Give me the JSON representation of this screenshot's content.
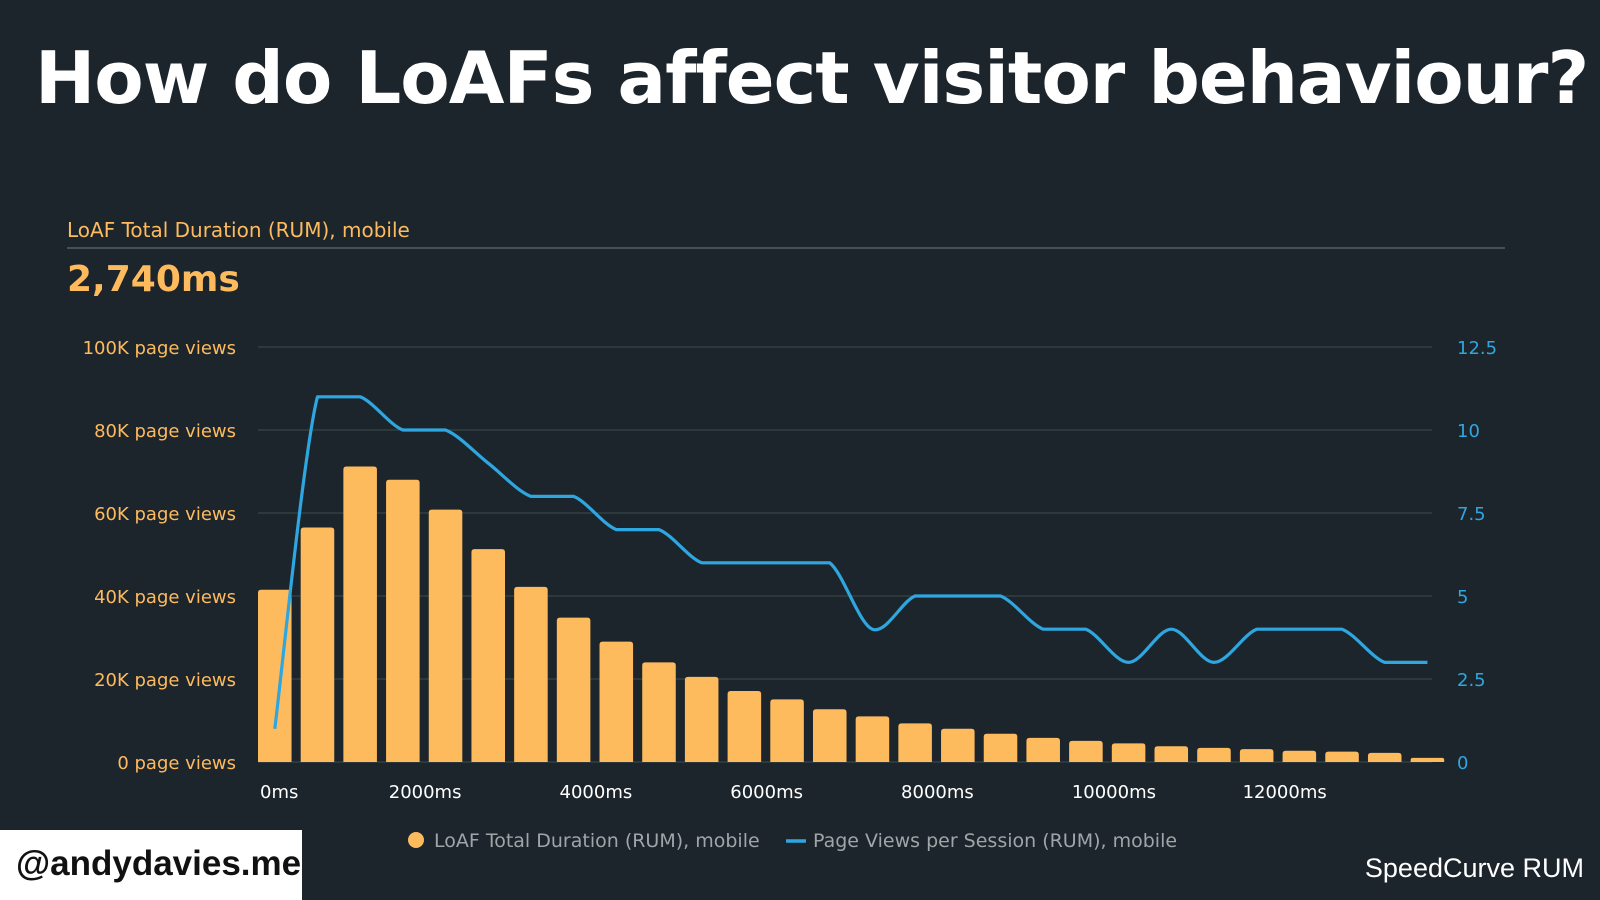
{
  "slide": {
    "title": "How do LoAFs affect visitor behaviour?",
    "handle": "@andydavies.me",
    "source": "SpeedCurve RUM"
  },
  "colors": {
    "background": "#1d252c",
    "bars": "#fdbb5e",
    "line": "#2ea6df",
    "gridline": "#3a4a47",
    "title_text": "#ffffff"
  },
  "chart_data": {
    "type": "bar",
    "metric_label": "LoAF Total Duration (RUM), mobile",
    "headline_value": "2,740ms",
    "x_tick_labels": [
      "0ms",
      "2000ms",
      "4000ms",
      "6000ms",
      "8000ms",
      "10000ms",
      "12000ms"
    ],
    "x_ticks": [
      0,
      2000,
      4000,
      6000,
      8000,
      10000,
      12000
    ],
    "x_range": [
      0,
      13750
    ],
    "y_left": {
      "range": [
        0,
        100000
      ],
      "tick_values": [
        0,
        20000,
        40000,
        60000,
        80000,
        100000
      ],
      "tick_labels": [
        "0 page views",
        "20K page views",
        "40K page views",
        "60K page views",
        "80K page views",
        "100K page views"
      ]
    },
    "y_right": {
      "range": [
        0,
        12.5
      ],
      "tick_values": [
        0,
        2.5,
        5,
        7.5,
        10,
        12.5
      ],
      "tick_labels": [
        "0",
        "2.5",
        "5",
        "7.5",
        "10",
        "12.5"
      ]
    },
    "grid": true,
    "legend_position": "bottom-center",
    "series": [
      {
        "name": "LoAF Total Duration (RUM), mobile",
        "type": "bar",
        "axis": "left",
        "x": [
          0,
          500,
          1000,
          1500,
          2000,
          2500,
          3000,
          3500,
          4000,
          4500,
          5000,
          5500,
          6000,
          6500,
          7000,
          7500,
          8000,
          8500,
          9000,
          9500,
          10000,
          10500,
          11000,
          11500,
          12000,
          12500,
          13000,
          13500
        ],
        "values": [
          41500,
          56500,
          71200,
          68000,
          60800,
          51300,
          42200,
          34800,
          29000,
          24000,
          20500,
          17100,
          15100,
          12700,
          11000,
          9300,
          8000,
          6800,
          5800,
          5100,
          4500,
          3800,
          3400,
          3100,
          2700,
          2500,
          2200,
          1000
        ]
      },
      {
        "name": "Page Views per Session (RUM), mobile",
        "type": "line",
        "axis": "right",
        "x": [
          0,
          500,
          1000,
          1500,
          2000,
          2500,
          3000,
          3500,
          4000,
          4500,
          5000,
          5500,
          6000,
          6500,
          7000,
          7500,
          8000,
          8500,
          9000,
          9500,
          10000,
          10500,
          11000,
          11500,
          12000,
          12500,
          13000,
          13500
        ],
        "values": [
          1,
          11,
          11,
          10,
          10,
          9,
          8,
          8,
          7,
          7,
          6,
          6,
          6,
          6,
          4,
          5,
          5,
          5,
          4,
          4,
          3,
          4,
          3,
          4,
          4,
          4,
          3,
          3
        ]
      }
    ]
  }
}
